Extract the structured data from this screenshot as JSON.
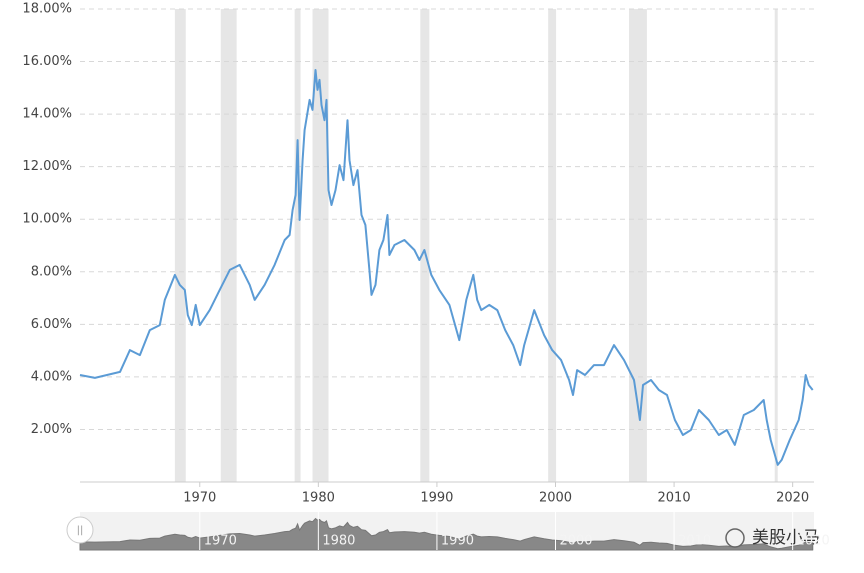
{
  "chart_data": {
    "type": "line",
    "x": [
      1959.9,
      1961.16,
      1963.27,
      1964.11,
      1964.95,
      1965.79,
      1966.63,
      1967.05,
      1967.9,
      1968.32,
      1968.74,
      1968.99,
      1969.33,
      1969.66,
      1970.0,
      1970.84,
      1971.68,
      1972.53,
      1973.37,
      1974.21,
      1974.63,
      1975.47,
      1976.31,
      1977.16,
      1977.58,
      1977.83,
      1978.08,
      1978.25,
      1978.42,
      1978.67,
      1978.84,
      1979.26,
      1979.51,
      1979.76,
      1979.93,
      1980.1,
      1980.27,
      1980.52,
      1980.69,
      1980.86,
      1981.11,
      1981.45,
      1981.79,
      1982.12,
      1982.46,
      1982.63,
      1982.96,
      1983.3,
      1983.64,
      1983.97,
      1984.31,
      1984.48,
      1984.82,
      1985.15,
      1985.49,
      1985.83,
      1985.99,
      1986.42,
      1987.26,
      1988.1,
      1988.52,
      1988.94,
      1989.53,
      1990.2,
      1991.05,
      1991.89,
      1992.48,
      1993.07,
      1993.4,
      1993.74,
      1994.41,
      1995.09,
      1995.76,
      1996.43,
      1997.02,
      1997.36,
      1998.2,
      1999.04,
      1999.72,
      2000.47,
      2001.15,
      2001.48,
      2001.82,
      2002.49,
      2003.25,
      2004.09,
      2004.93,
      2005.78,
      2006.62,
      2006.87,
      2007.12,
      2007.38,
      2008.05,
      2008.72,
      2009.4,
      2010.07,
      2010.74,
      2011.42,
      2012.09,
      2012.93,
      2013.77,
      2014.45,
      2015.12,
      2015.88,
      2016.72,
      2017.56,
      2017.81,
      2018.15,
      2018.74,
      2019.08,
      2019.75,
      2020.51,
      2020.84,
      2021.1,
      2021.35,
      2021.69
    ],
    "series": [
      {
        "color": "#5b9bd5",
        "values": [
          4.07,
          3.96,
          4.19,
          5.02,
          4.83,
          5.78,
          5.97,
          6.93,
          7.88,
          7.5,
          7.31,
          6.35,
          5.97,
          6.74,
          5.97,
          6.54,
          7.31,
          8.07,
          8.26,
          7.5,
          6.93,
          7.5,
          8.26,
          9.21,
          9.4,
          10.35,
          10.92,
          13.01,
          9.97,
          12.25,
          13.39,
          14.54,
          14.16,
          15.68,
          14.92,
          15.3,
          14.35,
          13.77,
          14.54,
          11.11,
          10.54,
          11.11,
          12.06,
          11.49,
          13.77,
          12.25,
          11.3,
          11.87,
          10.16,
          9.78,
          8.07,
          7.12,
          7.5,
          8.83,
          9.21,
          10.16,
          8.64,
          9.02,
          9.21,
          8.83,
          8.45,
          8.83,
          7.88,
          7.31,
          6.74,
          5.4,
          6.93,
          7.88,
          6.93,
          6.54,
          6.74,
          6.54,
          5.78,
          5.21,
          4.45,
          5.21,
          6.54,
          5.59,
          5.02,
          4.64,
          3.88,
          3.31,
          4.26,
          4.07,
          4.45,
          4.45,
          5.21,
          4.64,
          3.88,
          3.12,
          2.36,
          3.69,
          3.88,
          3.5,
          3.31,
          2.36,
          1.79,
          1.98,
          2.74,
          2.36,
          1.79,
          1.98,
          1.41,
          2.55,
          2.74,
          3.12,
          2.36,
          1.6,
          0.65,
          0.84,
          1.6,
          2.36,
          3.12,
          4.07,
          3.69,
          3.5
        ]
      }
    ],
    "recessions": [
      [
        1967.9,
        1968.82
      ],
      [
        1971.77,
        1973.11
      ],
      [
        1978.0,
        1978.5
      ],
      [
        1979.51,
        1980.86
      ],
      [
        1988.6,
        1989.36
      ],
      [
        1999.38,
        2000.05
      ],
      [
        2006.2,
        2007.71
      ],
      [
        2018.49,
        2018.74
      ]
    ],
    "recession_color": "#e6e6e6",
    "xlim": [
      1959.9,
      2021.8
    ],
    "xticks": [
      1970,
      1980,
      1990,
      2000,
      2010,
      2020
    ],
    "ylim": [
      0,
      18
    ],
    "yticks": [
      {
        "value": 2,
        "label": "2.00%"
      },
      {
        "value": 4,
        "label": "4.00%"
      },
      {
        "value": 6,
        "label": "6.00%"
      },
      {
        "value": 8,
        "label": "8.00%"
      },
      {
        "value": 10,
        "label": "10.00%"
      },
      {
        "value": 12,
        "label": "12.00%"
      },
      {
        "value": 14,
        "label": "14.00%"
      },
      {
        "value": 16,
        "label": "16.00%"
      },
      {
        "value": 18,
        "label": "18.00%"
      }
    ],
    "grid": true,
    "watermark": "美股小马"
  }
}
